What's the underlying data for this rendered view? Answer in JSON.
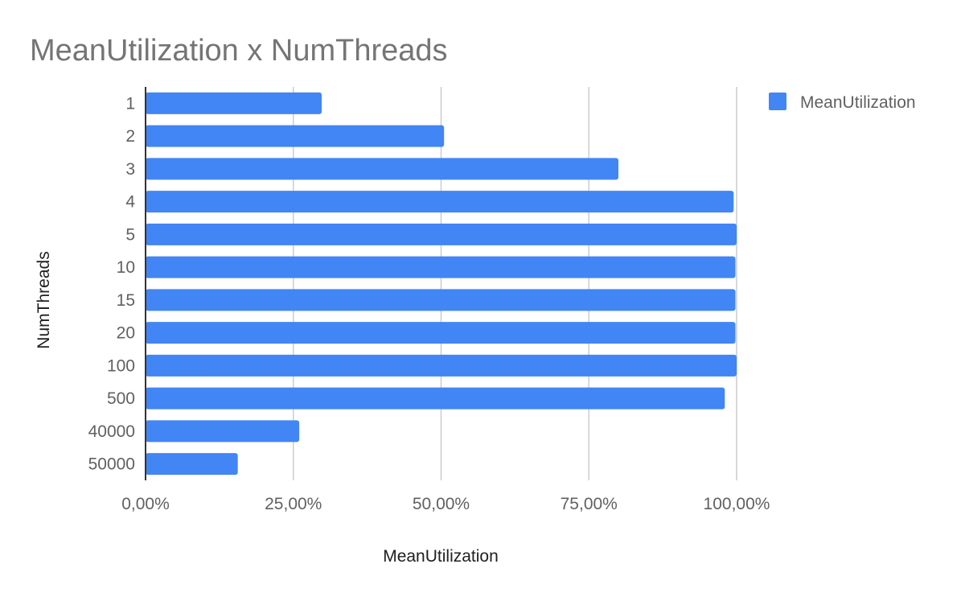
{
  "chart_data": {
    "type": "bar",
    "orientation": "horizontal",
    "title": "MeanUtilization x NumThreads",
    "xlabel": "MeanUtilization",
    "ylabel": "NumThreads",
    "categories": [
      "1",
      "2",
      "3",
      "4",
      "5",
      "10",
      "15",
      "20",
      "100",
      "500",
      "40000",
      "50000"
    ],
    "series": [
      {
        "name": "MeanUtilization",
        "color": "#4285f4",
        "values": [
          29.8,
          50.5,
          80.0,
          99.5,
          100.0,
          99.8,
          99.8,
          99.8,
          100.0,
          98.0,
          26.0,
          15.6
        ]
      }
    ],
    "xlim": [
      0,
      100
    ],
    "xticks": [
      0,
      25,
      50,
      75,
      100
    ],
    "xtick_labels": [
      "0,00%",
      "25,00%",
      "50,00%",
      "75,00%",
      "100,00%"
    ],
    "grid": true,
    "legend_position": "top-right",
    "colors": {
      "bar": "#4285f4",
      "grid": "#cccccc",
      "axis": "#333333"
    }
  }
}
